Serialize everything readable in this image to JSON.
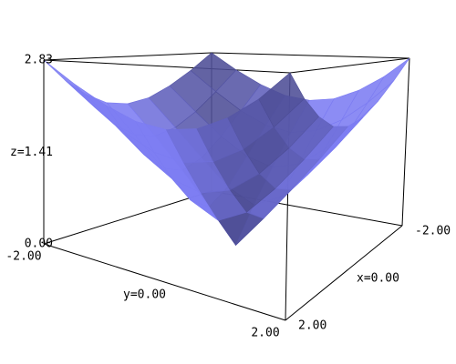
{
  "chart_data": {
    "type": "surface",
    "x": [
      -2,
      -1.5,
      -1,
      -0.5,
      0,
      0.5,
      1,
      1.5,
      2
    ],
    "y": [
      -2,
      -1.5,
      -1,
      -0.5,
      0,
      0.5,
      1,
      1.5,
      2
    ],
    "z": [
      [
        2.83,
        2.5,
        2.24,
        2.06,
        2,
        2.06,
        2.24,
        2.5,
        2.83
      ],
      [
        2.5,
        2.12,
        1.8,
        1.58,
        1.5,
        1.58,
        1.8,
        2.12,
        2.5
      ],
      [
        2.24,
        1.8,
        1.41,
        1.12,
        1,
        1.12,
        1.41,
        1.8,
        2.24
      ],
      [
        2.06,
        1.58,
        1.12,
        0.71,
        0.5,
        0.71,
        1.12,
        1.58,
        2.06
      ],
      [
        2,
        1.5,
        1,
        0.5,
        0,
        0.5,
        1,
        1.5,
        2
      ],
      [
        2.06,
        1.58,
        1.12,
        0.71,
        0.5,
        0.71,
        1.12,
        1.58,
        2.06
      ],
      [
        2.24,
        1.8,
        1.41,
        1.12,
        1,
        1.12,
        1.41,
        1.8,
        2.24
      ],
      [
        2.5,
        2.12,
        1.8,
        1.58,
        1.5,
        1.58,
        1.8,
        2.12,
        2.5
      ],
      [
        2.83,
        2.5,
        2.24,
        2.06,
        2,
        2.06,
        2.24,
        2.5,
        2.83
      ]
    ],
    "color": "#7c7cf2",
    "xlim": [
      -2,
      2
    ],
    "ylim": [
      -2,
      2
    ],
    "zlim": [
      0,
      2.83
    ],
    "xticks": [
      {
        "value": -2,
        "label": "-2.00"
      },
      {
        "value": 0,
        "label": "x=0.00"
      },
      {
        "value": 2,
        "label": "2.00"
      }
    ],
    "yticks": [
      {
        "value": -2,
        "label": "-2.00"
      },
      {
        "value": 0,
        "label": "y=0.00"
      },
      {
        "value": 2,
        "label": "2.00"
      }
    ],
    "zticks": [
      {
        "value": 0,
        "label": "0.00"
      },
      {
        "value": 1.41,
        "label": "z=1.41"
      },
      2.83
    ]
  }
}
